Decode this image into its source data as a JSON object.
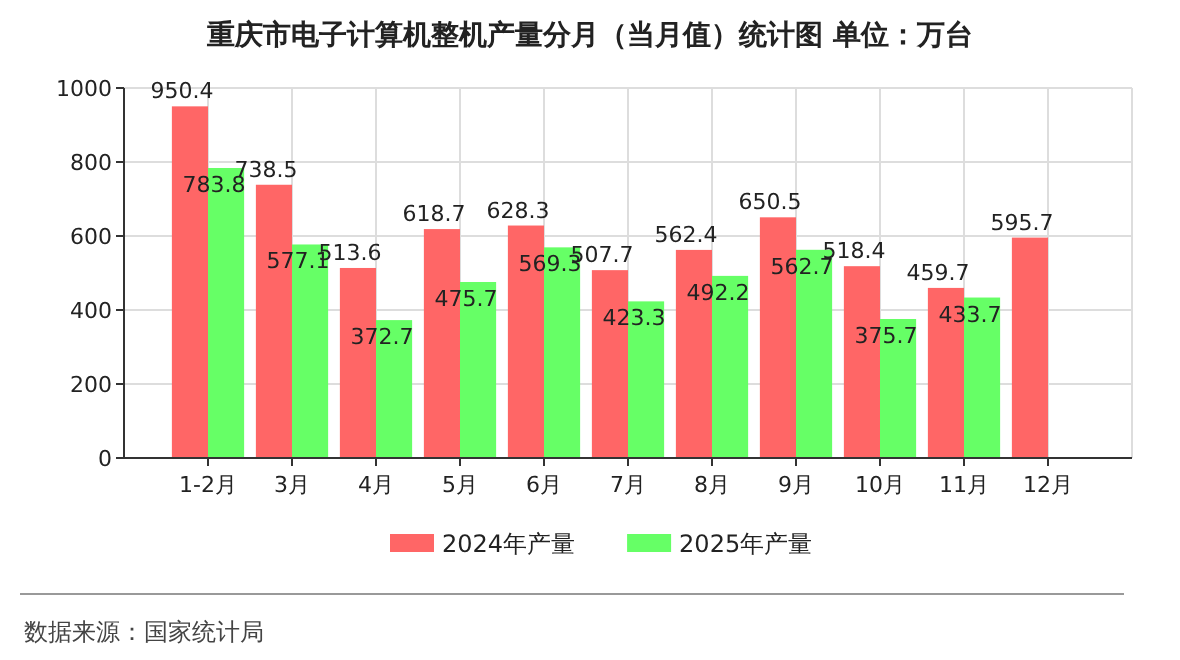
{
  "chart_data": {
    "type": "bar",
    "title": "重庆市电子计算机整机产量分月（当月值）统计图 单位：万台",
    "categories": [
      "1-2月",
      "3月",
      "4月",
      "5月",
      "6月",
      "7月",
      "8月",
      "9月",
      "10月",
      "11月",
      "12月"
    ],
    "series": [
      {
        "name": "2024年产量",
        "color": "#ff6666",
        "values": [
          950.4,
          738.5,
          513.6,
          618.7,
          628.3,
          507.7,
          562.4,
          650.5,
          518.4,
          459.7,
          595.7
        ]
      },
      {
        "name": "2025年产量",
        "color": "#66ff66",
        "values": [
          783.8,
          577.1,
          372.7,
          475.7,
          569.3,
          423.3,
          492.2,
          562.7,
          375.7,
          433.7,
          null
        ]
      }
    ],
    "ylim": [
      0,
      1000
    ],
    "yticks": [
      0,
      200,
      400,
      600,
      800,
      1000
    ],
    "grid": true,
    "legend": "bottom",
    "data_labels": true,
    "annotations": [
      "数据来源：国家统计局"
    ]
  }
}
